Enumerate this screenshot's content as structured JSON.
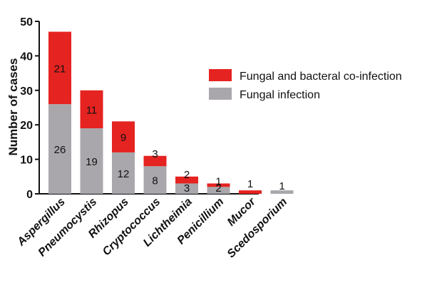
{
  "chart_data": {
    "type": "bar",
    "stacked": true,
    "categories": [
      "Aspergillus",
      "Pneumocystis",
      "Rhizopus",
      "Cryptococcus",
      "Lichtheimia",
      "Penicillium",
      "Mucor",
      "Scedosporium"
    ],
    "series": [
      {
        "name": "Fungal infection",
        "values": [
          26,
          19,
          12,
          8,
          3,
          2,
          0,
          1
        ],
        "labels": [
          "26",
          "19",
          "12",
          "8",
          "3",
          "2",
          "",
          "1"
        ]
      },
      {
        "name": "Fungal and bacteral co-infection",
        "values": [
          21,
          11,
          9,
          3,
          2,
          1,
          1,
          0
        ],
        "labels": [
          "21",
          "11",
          "9",
          "3",
          "2",
          "1",
          "1",
          ""
        ]
      }
    ],
    "colors": {
      "Fungal infection": "#a9a7ab",
      "Fungal and bacteral co-infection": "#e52321"
    },
    "ylabel": "Number of cases",
    "xlabel": "",
    "title": "",
    "ylim": [
      0,
      50
    ],
    "yticks": [
      "0",
      "10",
      "20",
      "30",
      "40",
      "50"
    ],
    "grid": false,
    "legend_position": "right",
    "legend": [
      {
        "name": "Fungal and bacteral co-infection"
      },
      {
        "name": "Fungal infection"
      }
    ]
  }
}
